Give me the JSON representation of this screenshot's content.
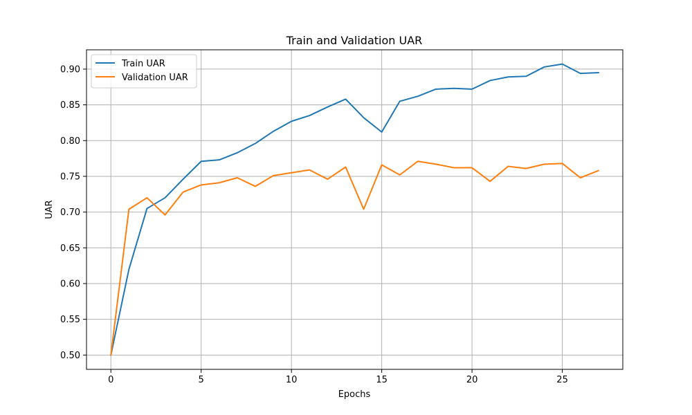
{
  "chart_data": {
    "type": "line",
    "title": "Train and Validation UAR",
    "xlabel": "Epochs",
    "ylabel": "UAR",
    "xlim": [
      -1.35,
      28.35
    ],
    "ylim": [
      0.48,
      0.927
    ],
    "xticks": [
      0,
      5,
      10,
      15,
      20,
      25
    ],
    "yticks": [
      0.5,
      0.55,
      0.6,
      0.65,
      0.7,
      0.75,
      0.8,
      0.85,
      0.9
    ],
    "ytick_labels": [
      "0.50",
      "0.55",
      "0.60",
      "0.65",
      "0.70",
      "0.75",
      "0.80",
      "0.85",
      "0.90"
    ],
    "grid": true,
    "legend_position": "top-left",
    "x": [
      0,
      1,
      2,
      3,
      4,
      5,
      6,
      7,
      8,
      9,
      10,
      11,
      12,
      13,
      14,
      15,
      16,
      17,
      18,
      19,
      20,
      21,
      22,
      23,
      24,
      25,
      26,
      27
    ],
    "series": [
      {
        "name": "Train UAR",
        "color": "#1f77b4",
        "values": [
          0.5,
          0.62,
          0.705,
          0.72,
          0.746,
          0.771,
          0.773,
          0.783,
          0.796,
          0.813,
          0.827,
          0.835,
          0.847,
          0.858,
          0.832,
          0.812,
          0.855,
          0.862,
          0.872,
          0.873,
          0.872,
          0.884,
          0.889,
          0.89,
          0.903,
          0.907,
          0.894,
          0.895
        ]
      },
      {
        "name": "Validation UAR",
        "color": "#ff7f0e",
        "values": [
          0.5,
          0.704,
          0.72,
          0.696,
          0.728,
          0.738,
          0.741,
          0.748,
          0.736,
          0.751,
          0.755,
          0.759,
          0.746,
          0.763,
          0.704,
          0.766,
          0.752,
          0.771,
          0.767,
          0.762,
          0.762,
          0.743,
          0.764,
          0.761,
          0.767,
          0.768,
          0.748,
          0.758
        ]
      }
    ]
  }
}
